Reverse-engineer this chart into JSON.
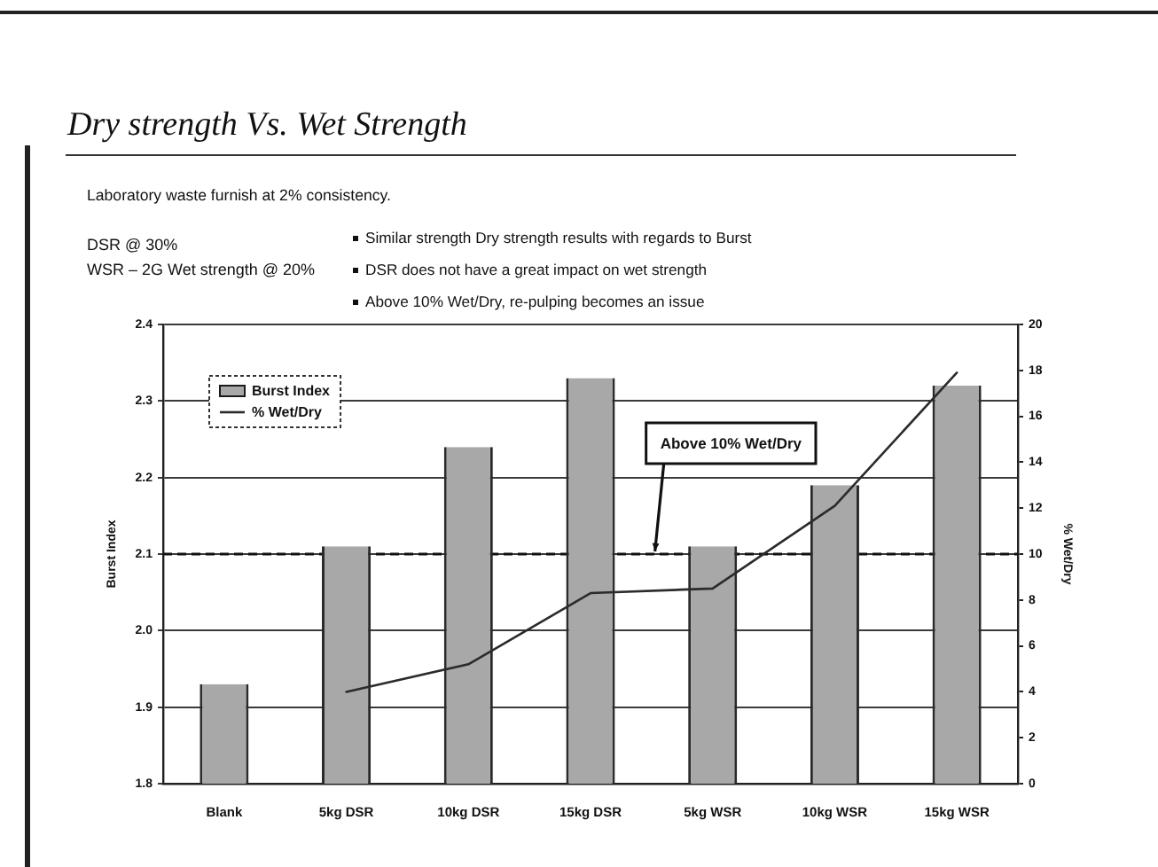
{
  "chart_data": {
    "type": "bar",
    "title": "Dry strength Vs. Wet Strength",
    "subtitle": "Laboratory waste furnish at 2% consistency.",
    "annotations": [
      "DSR @ 30%",
      "WSR – 2G Wet strength @ 20%",
      "Similar strength Dry strength results with regards to Burst",
      "DSR does not have a great impact on wet strength",
      "Above 10% Wet/Dry, re-pulping becomes an issue"
    ],
    "ylabel": "Burst Index",
    "y2label": "% Wet/Dry",
    "categories": [
      "Blank",
      "5kg DSR",
      "10kg DSR",
      "15kg DSR",
      "5kg WSR",
      "10kg WSR",
      "15kg WSR"
    ],
    "series": [
      {
        "name": "Burst Index",
        "color": "#a8a8a8",
        "values": [
          1.93,
          2.11,
          2.24,
          2.33,
          2.11,
          2.19,
          2.32
        ]
      },
      {
        "name": "% Wet/Dry",
        "type": "line",
        "axis": "y2",
        "color": "#2b2b2b",
        "values": [
          null,
          4.0,
          5.2,
          8.3,
          8.5,
          12.1,
          17.9
        ]
      }
    ],
    "ylim": [
      1.8,
      2.4
    ],
    "yticks": [
      1.8,
      1.9,
      {
        "value": 2,
        "label": "2.0"
      },
      2.1,
      2.2,
      2.3,
      2.4
    ],
    "y2lim": [
      0,
      20
    ],
    "y2ticks": [
      0,
      2,
      4,
      6,
      8,
      10,
      12,
      14,
      16,
      18,
      20
    ],
    "ref_lines": [
      {
        "axis": "y2",
        "value": 10,
        "label": "Above 10% Wet/Dry",
        "color": "#111111",
        "line_style": "dashed"
      }
    ],
    "grid": "y",
    "legend": "top left",
    "marker": "none"
  }
}
